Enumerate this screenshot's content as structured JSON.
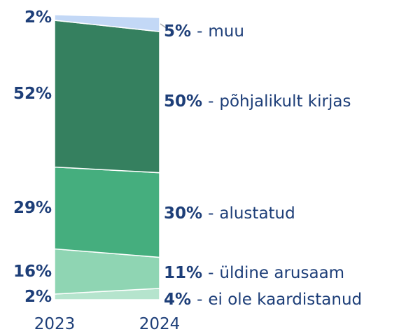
{
  "chart_data": {
    "type": "stacked_area",
    "categories": [
      "2023",
      "2024"
    ],
    "label_separator": "-",
    "series": [
      {
        "name": "ei ole kaardistanud",
        "color": "#b5e4cd",
        "values": [
          2,
          4
        ],
        "value_labels": [
          "2%",
          "4%"
        ]
      },
      {
        "name": "üldine arusaam",
        "color": "#8fd5b3",
        "values": [
          16,
          11
        ],
        "value_labels": [
          "16%",
          "11%"
        ]
      },
      {
        "name": "alustatud",
        "color": "#45ae7e",
        "values": [
          29,
          30
        ],
        "value_labels": [
          "29%",
          "30%"
        ]
      },
      {
        "name": "põhjalikult kirjas",
        "color": "#35805f",
        "values": [
          52,
          50
        ],
        "value_labels": [
          "52%",
          "50%"
        ]
      },
      {
        "name": "muu",
        "color": "#c3d8f6",
        "values": [
          2,
          5
        ],
        "value_labels": [
          "2%",
          "5%"
        ]
      }
    ]
  }
}
